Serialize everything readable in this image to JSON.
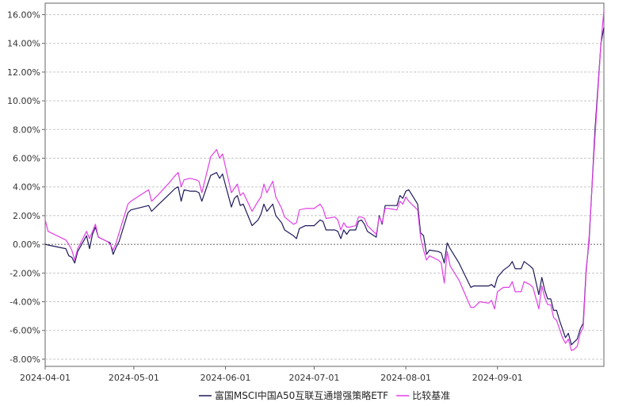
{
  "chart_data": {
    "type": "line",
    "title": "",
    "xlabel": "",
    "ylabel": "",
    "x_ticks": [
      "2024-04-01",
      "2024-05-01",
      "2024-06-01",
      "2024-07-01",
      "2024-08-01",
      "2024-09-01"
    ],
    "y_ticks": [
      "-8.00%",
      "-6.00%",
      "-4.00%",
      "-2.00%",
      "0.00%",
      "2.00%",
      "4.00%",
      "6.00%",
      "8.00%",
      "10.00%",
      "12.00%",
      "14.00%",
      "16.00%"
    ],
    "xlim": [
      "2024-04-01",
      "2024-09-30"
    ],
    "ylim": [
      -8.5,
      16.8
    ],
    "grid": true,
    "legend_position": "bottom",
    "series": [
      {
        "name": "富国MSCI中国A50互联互通增强策略ETF",
        "color": "#1f1a5c",
        "points": [
          [
            "2024-04-01",
            0.0
          ],
          [
            "2024-04-02",
            -0.05
          ],
          [
            "2024-04-08",
            -0.3
          ],
          [
            "2024-04-09",
            -0.8
          ],
          [
            "2024-04-10",
            -0.9
          ],
          [
            "2024-04-11",
            -1.3
          ],
          [
            "2024-04-12",
            -0.5
          ],
          [
            "2024-04-15",
            0.6
          ],
          [
            "2024-04-16",
            -0.3
          ],
          [
            "2024-04-17",
            0.7
          ],
          [
            "2024-04-18",
            1.2
          ],
          [
            "2024-04-19",
            0.5
          ],
          [
            "2024-04-22",
            0.2
          ],
          [
            "2024-04-23",
            0.1
          ],
          [
            "2024-04-24",
            -0.7
          ],
          [
            "2024-04-25",
            -0.2
          ],
          [
            "2024-04-26",
            0.2
          ],
          [
            "2024-04-29",
            2.2
          ],
          [
            "2024-04-30",
            2.4
          ],
          [
            "2024-05-06",
            2.7
          ],
          [
            "2024-05-07",
            2.3
          ],
          [
            "2024-05-09",
            2.7
          ],
          [
            "2024-05-13",
            3.5
          ],
          [
            "2024-05-15",
            3.9
          ],
          [
            "2024-05-16",
            4.0
          ],
          [
            "2024-05-17",
            3.0
          ],
          [
            "2024-05-18",
            3.8
          ],
          [
            "2024-05-20",
            3.7
          ],
          [
            "2024-05-22",
            3.7
          ],
          [
            "2024-05-23",
            3.6
          ],
          [
            "2024-05-24",
            3.0
          ],
          [
            "2024-05-27",
            4.8
          ],
          [
            "2024-05-29",
            5.0
          ],
          [
            "2024-05-30",
            4.6
          ],
          [
            "2024-05-31",
            4.9
          ],
          [
            "2024-06-03",
            2.6
          ],
          [
            "2024-06-04",
            3.2
          ],
          [
            "2024-06-05",
            3.4
          ],
          [
            "2024-06-06",
            2.7
          ],
          [
            "2024-06-07",
            2.8
          ],
          [
            "2024-06-10",
            1.3
          ],
          [
            "2024-06-12",
            1.7
          ],
          [
            "2024-06-13",
            2.1
          ],
          [
            "2024-06-14",
            2.8
          ],
          [
            "2024-06-15",
            2.3
          ],
          [
            "2024-06-17",
            2.8
          ],
          [
            "2024-06-18",
            2.0
          ],
          [
            "2024-06-20",
            1.5
          ],
          [
            "2024-06-21",
            1.0
          ],
          [
            "2024-06-24",
            0.6
          ],
          [
            "2024-06-25",
            0.4
          ],
          [
            "2024-06-26",
            1.1
          ],
          [
            "2024-06-28",
            1.3
          ],
          [
            "2024-07-01",
            1.3
          ],
          [
            "2024-07-03",
            1.7
          ],
          [
            "2024-07-04",
            1.6
          ],
          [
            "2024-07-05",
            1.0
          ],
          [
            "2024-07-08",
            1.0
          ],
          [
            "2024-07-09",
            0.9
          ],
          [
            "2024-07-10",
            0.4
          ],
          [
            "2024-07-11",
            1.0
          ],
          [
            "2024-07-12",
            0.7
          ],
          [
            "2024-07-13",
            1.0
          ],
          [
            "2024-07-15",
            1.0
          ],
          [
            "2024-07-16",
            1.6
          ],
          [
            "2024-07-17",
            1.7
          ],
          [
            "2024-07-18",
            1.4
          ],
          [
            "2024-07-19",
            0.9
          ],
          [
            "2024-07-22",
            0.5
          ],
          [
            "2024-07-23",
            2.0
          ],
          [
            "2024-07-24",
            1.4
          ],
          [
            "2024-07-25",
            2.7
          ],
          [
            "2024-07-26",
            2.7
          ],
          [
            "2024-07-29",
            2.7
          ],
          [
            "2024-07-30",
            3.4
          ],
          [
            "2024-07-31",
            3.2
          ],
          [
            "2024-08-01",
            3.7
          ],
          [
            "2024-08-02",
            3.8
          ],
          [
            "2024-08-05",
            2.8
          ],
          [
            "2024-08-06",
            0.8
          ],
          [
            "2024-08-07",
            0.6
          ],
          [
            "2024-08-08",
            -0.7
          ],
          [
            "2024-08-09",
            -0.4
          ],
          [
            "2024-08-12",
            -0.5
          ],
          [
            "2024-08-13",
            -0.6
          ],
          [
            "2024-08-14",
            -1.3
          ],
          [
            "2024-08-15",
            0.1
          ],
          [
            "2024-08-16",
            -0.3
          ],
          [
            "2024-08-19",
            -1.3
          ],
          [
            "2024-08-23",
            -3.0
          ],
          [
            "2024-08-24",
            -2.9
          ],
          [
            "2024-08-26",
            -2.9
          ],
          [
            "2024-08-29",
            -2.9
          ],
          [
            "2024-08-30",
            -2.8
          ],
          [
            "2024-08-31",
            -3.0
          ],
          [
            "2024-09-01",
            -2.3
          ],
          [
            "2024-09-03",
            -1.8
          ],
          [
            "2024-09-05",
            -1.5
          ],
          [
            "2024-09-06",
            -1.2
          ],
          [
            "2024-09-07",
            -1.7
          ],
          [
            "2024-09-09",
            -1.7
          ],
          [
            "2024-09-10",
            -1.2
          ],
          [
            "2024-09-12",
            -1.5
          ],
          [
            "2024-09-13",
            -1.7
          ],
          [
            "2024-09-15",
            -3.5
          ],
          [
            "2024-09-16",
            -2.3
          ],
          [
            "2024-09-17",
            -3.2
          ],
          [
            "2024-09-18",
            -3.8
          ],
          [
            "2024-09-19",
            -3.8
          ],
          [
            "2024-09-20",
            -4.6
          ],
          [
            "2024-09-21",
            -4.6
          ],
          [
            "2024-09-22",
            -5.3
          ],
          [
            "2024-09-23",
            -5.9
          ],
          [
            "2024-09-24",
            -6.5
          ],
          [
            "2024-09-25",
            -6.2
          ],
          [
            "2024-09-26",
            -7.0
          ],
          [
            "2024-09-27",
            -6.8
          ],
          [
            "2024-09-28",
            -6.6
          ],
          [
            "2024-09-29",
            -5.9
          ],
          [
            "2024-09-30",
            -5.5
          ],
          [
            "2024-10-01",
            -1.8
          ],
          [
            "2024-10-02",
            0.2
          ],
          [
            "2024-10-04",
            8.0
          ],
          [
            "2024-10-06",
            14.0
          ],
          [
            "2024-10-07",
            15.1
          ]
        ]
      },
      {
        "name": "比较基准",
        "color": "#e23fe6",
        "points": [
          [
            "2024-04-01",
            1.7
          ],
          [
            "2024-04-02",
            0.9
          ],
          [
            "2024-04-08",
            0.3
          ],
          [
            "2024-04-09",
            0.0
          ],
          [
            "2024-04-10",
            -0.4
          ],
          [
            "2024-04-11",
            -1.1
          ],
          [
            "2024-04-12",
            -0.3
          ],
          [
            "2024-04-15",
            0.9
          ],
          [
            "2024-04-16",
            0.4
          ],
          [
            "2024-04-17",
            0.9
          ],
          [
            "2024-04-18",
            1.4
          ],
          [
            "2024-04-19",
            0.5
          ],
          [
            "2024-04-22",
            0.2
          ],
          [
            "2024-04-23",
            0.0
          ],
          [
            "2024-04-24",
            -0.4
          ],
          [
            "2024-04-25",
            0.1
          ],
          [
            "2024-04-26",
            0.8
          ],
          [
            "2024-04-29",
            2.8
          ],
          [
            "2024-04-30",
            3.0
          ],
          [
            "2024-05-06",
            3.8
          ],
          [
            "2024-05-07",
            3.0
          ],
          [
            "2024-05-09",
            3.4
          ],
          [
            "2024-05-13",
            4.3
          ],
          [
            "2024-05-15",
            4.8
          ],
          [
            "2024-05-16",
            5.0
          ],
          [
            "2024-05-17",
            4.0
          ],
          [
            "2024-05-18",
            4.5
          ],
          [
            "2024-05-20",
            4.6
          ],
          [
            "2024-05-22",
            4.5
          ],
          [
            "2024-05-23",
            4.4
          ],
          [
            "2024-05-24",
            3.6
          ],
          [
            "2024-05-27",
            6.1
          ],
          [
            "2024-05-29",
            6.6
          ],
          [
            "2024-05-30",
            6.0
          ],
          [
            "2024-05-31",
            6.3
          ],
          [
            "2024-06-03",
            3.6
          ],
          [
            "2024-06-04",
            3.9
          ],
          [
            "2024-06-05",
            4.2
          ],
          [
            "2024-06-06",
            3.4
          ],
          [
            "2024-06-07",
            3.6
          ],
          [
            "2024-06-10",
            2.3
          ],
          [
            "2024-06-12",
            3.0
          ],
          [
            "2024-06-13",
            3.3
          ],
          [
            "2024-06-14",
            4.2
          ],
          [
            "2024-06-15",
            3.6
          ],
          [
            "2024-06-17",
            4.4
          ],
          [
            "2024-06-18",
            3.3
          ],
          [
            "2024-06-20",
            2.5
          ],
          [
            "2024-06-21",
            1.9
          ],
          [
            "2024-06-24",
            1.4
          ],
          [
            "2024-06-25",
            1.5
          ],
          [
            "2024-06-26",
            2.4
          ],
          [
            "2024-06-28",
            2.5
          ],
          [
            "2024-07-01",
            2.5
          ],
          [
            "2024-07-03",
            2.8
          ],
          [
            "2024-07-04",
            2.5
          ],
          [
            "2024-07-05",
            1.8
          ],
          [
            "2024-07-08",
            1.9
          ],
          [
            "2024-07-09",
            1.7
          ],
          [
            "2024-07-10",
            1.0
          ],
          [
            "2024-07-11",
            1.5
          ],
          [
            "2024-07-12",
            1.2
          ],
          [
            "2024-07-13",
            1.2
          ],
          [
            "2024-07-15",
            1.3
          ],
          [
            "2024-07-16",
            1.9
          ],
          [
            "2024-07-17",
            1.9
          ],
          [
            "2024-07-18",
            1.8
          ],
          [
            "2024-07-19",
            1.3
          ],
          [
            "2024-07-22",
            0.7
          ],
          [
            "2024-07-23",
            1.9
          ],
          [
            "2024-07-24",
            1.5
          ],
          [
            "2024-07-25",
            2.5
          ],
          [
            "2024-07-26",
            2.5
          ],
          [
            "2024-07-29",
            2.4
          ],
          [
            "2024-07-30",
            3.0
          ],
          [
            "2024-07-31",
            2.8
          ],
          [
            "2024-08-01",
            3.3
          ],
          [
            "2024-08-02",
            3.0
          ],
          [
            "2024-08-05",
            2.4
          ],
          [
            "2024-08-06",
            0.5
          ],
          [
            "2024-08-07",
            -0.4
          ],
          [
            "2024-08-08",
            -1.1
          ],
          [
            "2024-08-09",
            -0.8
          ],
          [
            "2024-08-12",
            -1.1
          ],
          [
            "2024-08-13",
            -1.3
          ],
          [
            "2024-08-14",
            -2.7
          ],
          [
            "2024-08-15",
            -0.5
          ],
          [
            "2024-08-16",
            -1.5
          ],
          [
            "2024-08-19",
            -2.5
          ],
          [
            "2024-08-23",
            -4.4
          ],
          [
            "2024-08-24",
            -4.4
          ],
          [
            "2024-08-26",
            -4.0
          ],
          [
            "2024-08-29",
            -4.1
          ],
          [
            "2024-08-30",
            -3.9
          ],
          [
            "2024-08-31",
            -4.5
          ],
          [
            "2024-09-01",
            -3.3
          ],
          [
            "2024-09-03",
            -3.0
          ],
          [
            "2024-09-05",
            -3.0
          ],
          [
            "2024-09-06",
            -2.6
          ],
          [
            "2024-09-07",
            -3.3
          ],
          [
            "2024-09-09",
            -3.3
          ],
          [
            "2024-09-10",
            -2.6
          ],
          [
            "2024-09-12",
            -2.8
          ],
          [
            "2024-09-13",
            -3.0
          ],
          [
            "2024-09-15",
            -4.5
          ],
          [
            "2024-09-16",
            -2.9
          ],
          [
            "2024-09-17",
            -3.7
          ],
          [
            "2024-09-18",
            -4.2
          ],
          [
            "2024-09-19",
            -4.2
          ],
          [
            "2024-09-20",
            -5.1
          ],
          [
            "2024-09-21",
            -5.3
          ],
          [
            "2024-09-22",
            -5.9
          ],
          [
            "2024-09-23",
            -6.5
          ],
          [
            "2024-09-24",
            -6.9
          ],
          [
            "2024-09-25",
            -6.6
          ],
          [
            "2024-09-26",
            -7.4
          ],
          [
            "2024-09-27",
            -7.3
          ],
          [
            "2024-09-28",
            -7.1
          ],
          [
            "2024-09-29",
            -6.2
          ],
          [
            "2024-09-30",
            -5.8
          ],
          [
            "2024-10-01",
            -2.0
          ],
          [
            "2024-10-02",
            0.5
          ],
          [
            "2024-10-04",
            7.5
          ],
          [
            "2024-10-06",
            14.0
          ],
          [
            "2024-10-07",
            16.3
          ]
        ]
      }
    ]
  }
}
